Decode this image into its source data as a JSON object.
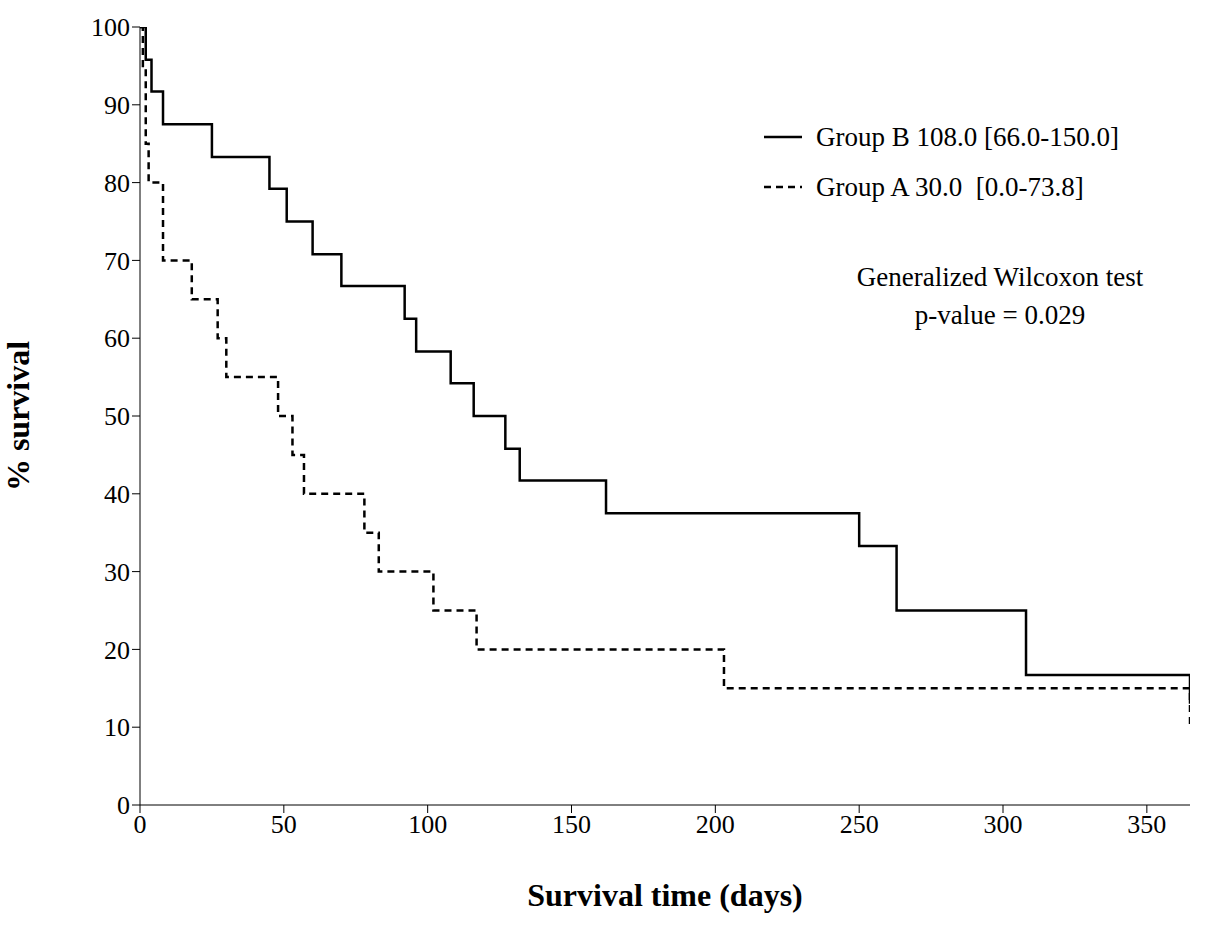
{
  "chart_data": {
    "type": "line",
    "x_label": "Survival time (days)",
    "y_label": "% survival",
    "annotations": [
      "Generalized Wilcoxon test",
      "p-value = 0.029"
    ],
    "legend": "upper right",
    "grid": false,
    "xlim": [
      0,
      365
    ],
    "xticks": [
      0,
      50,
      100,
      150,
      200,
      250,
      300,
      350
    ],
    "ylim": [
      0,
      100
    ],
    "yticks": [
      0,
      10,
      20,
      30,
      40,
      50,
      60,
      70,
      80,
      90,
      100
    ],
    "series": [
      {
        "name": "Group B 108.0 [66.0-150.0]",
        "color": "#000000",
        "line_style": "solid",
        "x": [
          0,
          2,
          4,
          8,
          25,
          45,
          51,
          60,
          70,
          92,
          96,
          108,
          116,
          127,
          132,
          162,
          250,
          263,
          308,
          365
        ],
        "values": [
          100,
          95.8,
          91.7,
          87.5,
          83.3,
          79.2,
          75,
          70.8,
          66.7,
          62.5,
          58.3,
          54.2,
          50,
          45.8,
          41.7,
          37.5,
          33.3,
          25,
          16.7,
          13
        ]
      },
      {
        "name": "Group A 30.0  [0.0-73.8]",
        "color": "#000000",
        "line_style": "dashed",
        "x": [
          0,
          1,
          2,
          3,
          8,
          18,
          27,
          30,
          48,
          53,
          57,
          78,
          83,
          102,
          117,
          203,
          365
        ],
        "values": [
          100,
          95,
          85,
          80,
          70,
          65,
          60,
          55,
          50,
          45,
          40,
          35,
          30,
          25,
          20,
          15,
          10
        ]
      }
    ]
  }
}
